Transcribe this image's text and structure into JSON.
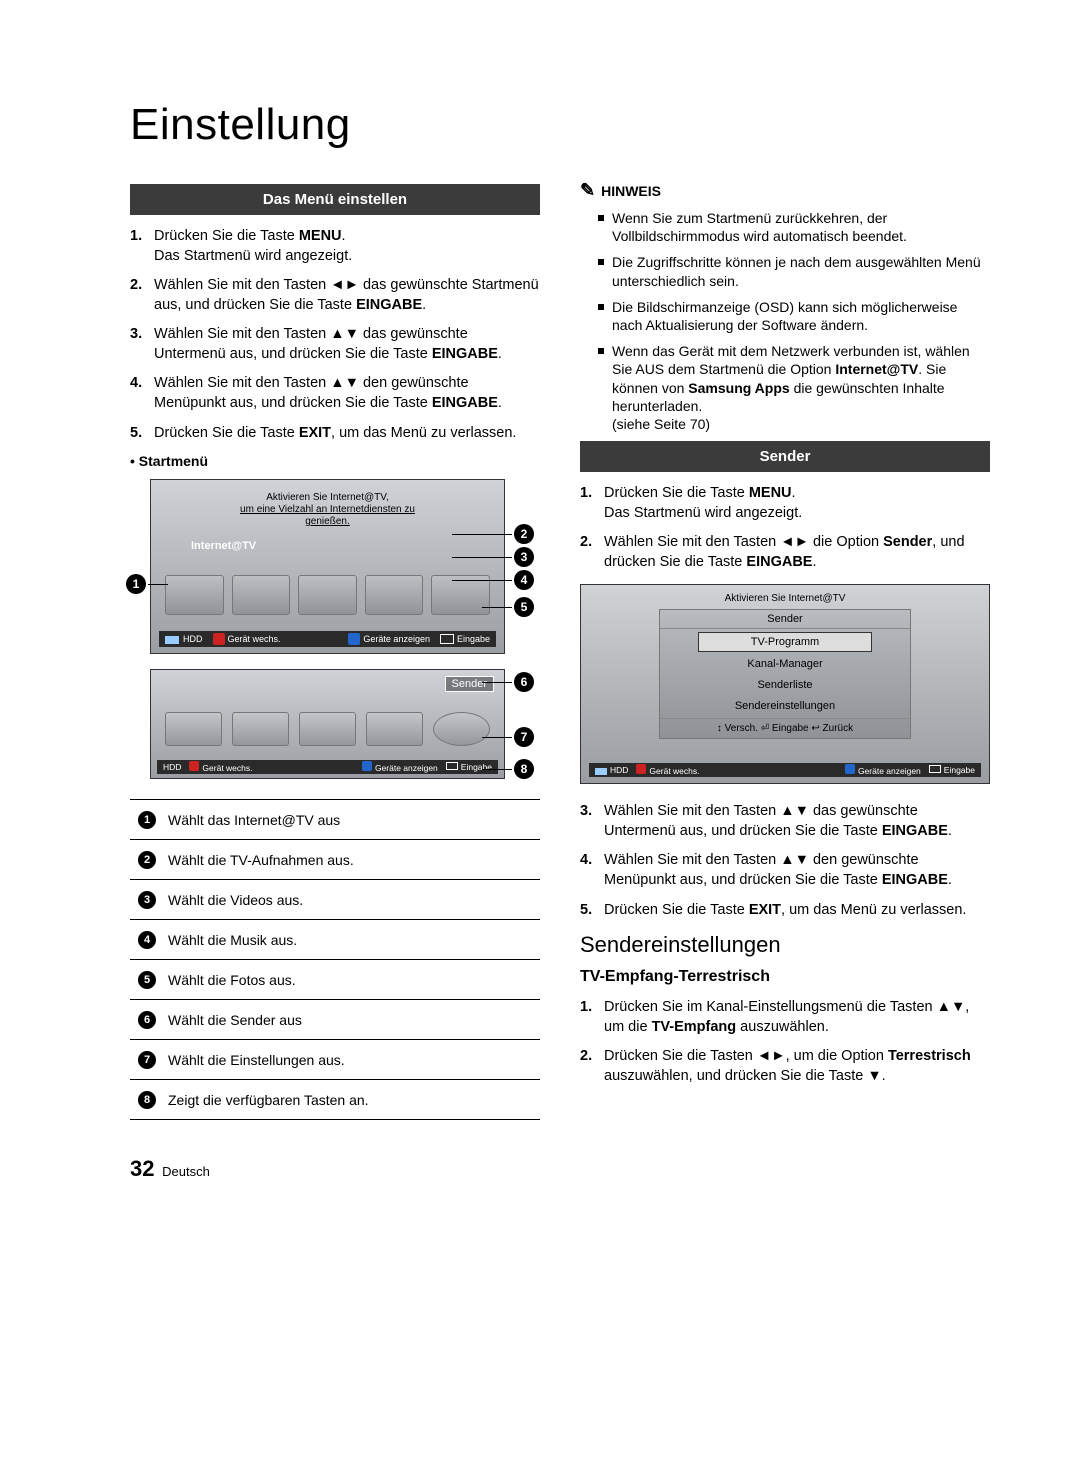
{
  "page": {
    "title": "Einstellung",
    "number": "32",
    "lang": "Deutsch"
  },
  "left": {
    "header1": "Das Menü einstellen",
    "steps": [
      {
        "n": "1.",
        "html": "Drücken Sie die Taste <b>MENU</b>.<br>Das Startmenü wird angezeigt."
      },
      {
        "n": "2.",
        "html": "Wählen Sie mit den Tasten ◄► das gewünschte Startmenü aus, und drücken Sie die Taste <b>EINGABE</b>."
      },
      {
        "n": "3.",
        "html": "Wählen Sie mit den Tasten ▲▼ das gewünschte Untermenü aus, und drücken Sie die Taste <b>EINGABE</b>."
      },
      {
        "n": "4.",
        "html": "Wählen Sie mit den Tasten ▲▼ den gewünschte Menüpunkt aus, und drücken Sie die Taste <b>EINGABE</b>."
      },
      {
        "n": "5.",
        "html": "Drücken Sie die Taste <b>EXIT</b>, um das Menü zu verlassen."
      }
    ],
    "subhead": "Startmenü",
    "fig1": {
      "banner_l1": "Aktivieren Sie Internet@TV,",
      "banner_l2": "um eine Vielzahl an Internetdiensten zu genießen.",
      "internet": "Internet@TV",
      "bar_hdd": "HDD",
      "bar_a": "Gerät wechs.",
      "bar_d": "Geräte anzeigen",
      "bar_e": "Eingabe"
    },
    "fig2": {
      "label": "Sender",
      "bar_hdd": "HDD",
      "bar_a": "Gerät wechs.",
      "bar_d": "Geräte anzeigen",
      "bar_e": "Eingabe"
    },
    "legend": [
      "Wählt das Internet@TV aus",
      "Wählt die TV-Aufnahmen aus.",
      "Wählt die Videos aus.",
      "Wählt die Musik aus.",
      "Wählt die Fotos aus.",
      "Wählt die Sender aus",
      "Wählt die Einstellungen aus.",
      "Zeigt die verfügbaren Tasten an."
    ]
  },
  "right": {
    "hinweis_label": "HINWEIS",
    "hinweis": [
      "Wenn Sie zum Startmenü zurückkehren, der Vollbildschirmmodus wird automatisch beendet.",
      "Die Zugriffschritte können je nach dem ausgewählten Menü unterschiedlich sein.",
      "Die Bildschirmanzeige (OSD) kann sich möglicherweise nach Aktualisierung der Software ändern.",
      "Wenn das Gerät mit dem Netzwerk verbunden ist, wählen Sie AUS dem Startmenü die Option <b>Internet@TV</b>. Sie können von <b>Samsung Apps</b> die gewünschten Inhalte herunterladen.<br>(siehe Seite 70)"
    ],
    "header2": "Sender",
    "steps2": [
      {
        "n": "1.",
        "html": "Drücken Sie die Taste <b>MENU</b>.<br>Das Startmenü wird angezeigt."
      },
      {
        "n": "2.",
        "html": "Wählen Sie mit den Tasten ◄► die Option <b>Sender</b>, und drücken Sie die Taste <b>EINGABE</b>."
      }
    ],
    "fig3": {
      "banner": "Aktivieren Sie Internet@TV",
      "title": "Sender",
      "items": [
        "TV-Programm",
        "Kanal-Manager",
        "Senderliste",
        "Sendereinstellungen"
      ],
      "foot": "↕ Versch.   ⏎ Eingabe   ↩ Zurück",
      "bar_hdd": "HDD",
      "bar_a": "Gerät wechs.",
      "bar_d": "Geräte anzeigen",
      "bar_e": "Eingabe"
    },
    "steps3": [
      {
        "n": "3.",
        "html": "Wählen Sie mit den Tasten ▲▼ das gewünschte Untermenü aus, und drücken Sie die Taste <b>EINGABE</b>."
      },
      {
        "n": "4.",
        "html": "Wählen Sie mit den Tasten ▲▼ den gewünschte Menüpunkt aus, und drücken Sie die Taste <b>EINGABE</b>."
      },
      {
        "n": "5.",
        "html": "Drücken Sie die Taste <b>EXIT</b>, um das Menü zu verlassen."
      }
    ],
    "h2": "Sendereinstellungen",
    "h3": "TV-Empfang-Terrestrisch",
    "steps4": [
      {
        "n": "1.",
        "html": "Drücken Sie im Kanal-Einstellungsmenü die Tasten ▲▼, um die <b>TV-Empfang</b> auszuwählen."
      },
      {
        "n": "2.",
        "html": "Drücken Sie die Tasten ◄►, um die Option <b>Terrestrisch</b> auszuwählen, und drücken Sie die Taste ▼."
      }
    ]
  }
}
